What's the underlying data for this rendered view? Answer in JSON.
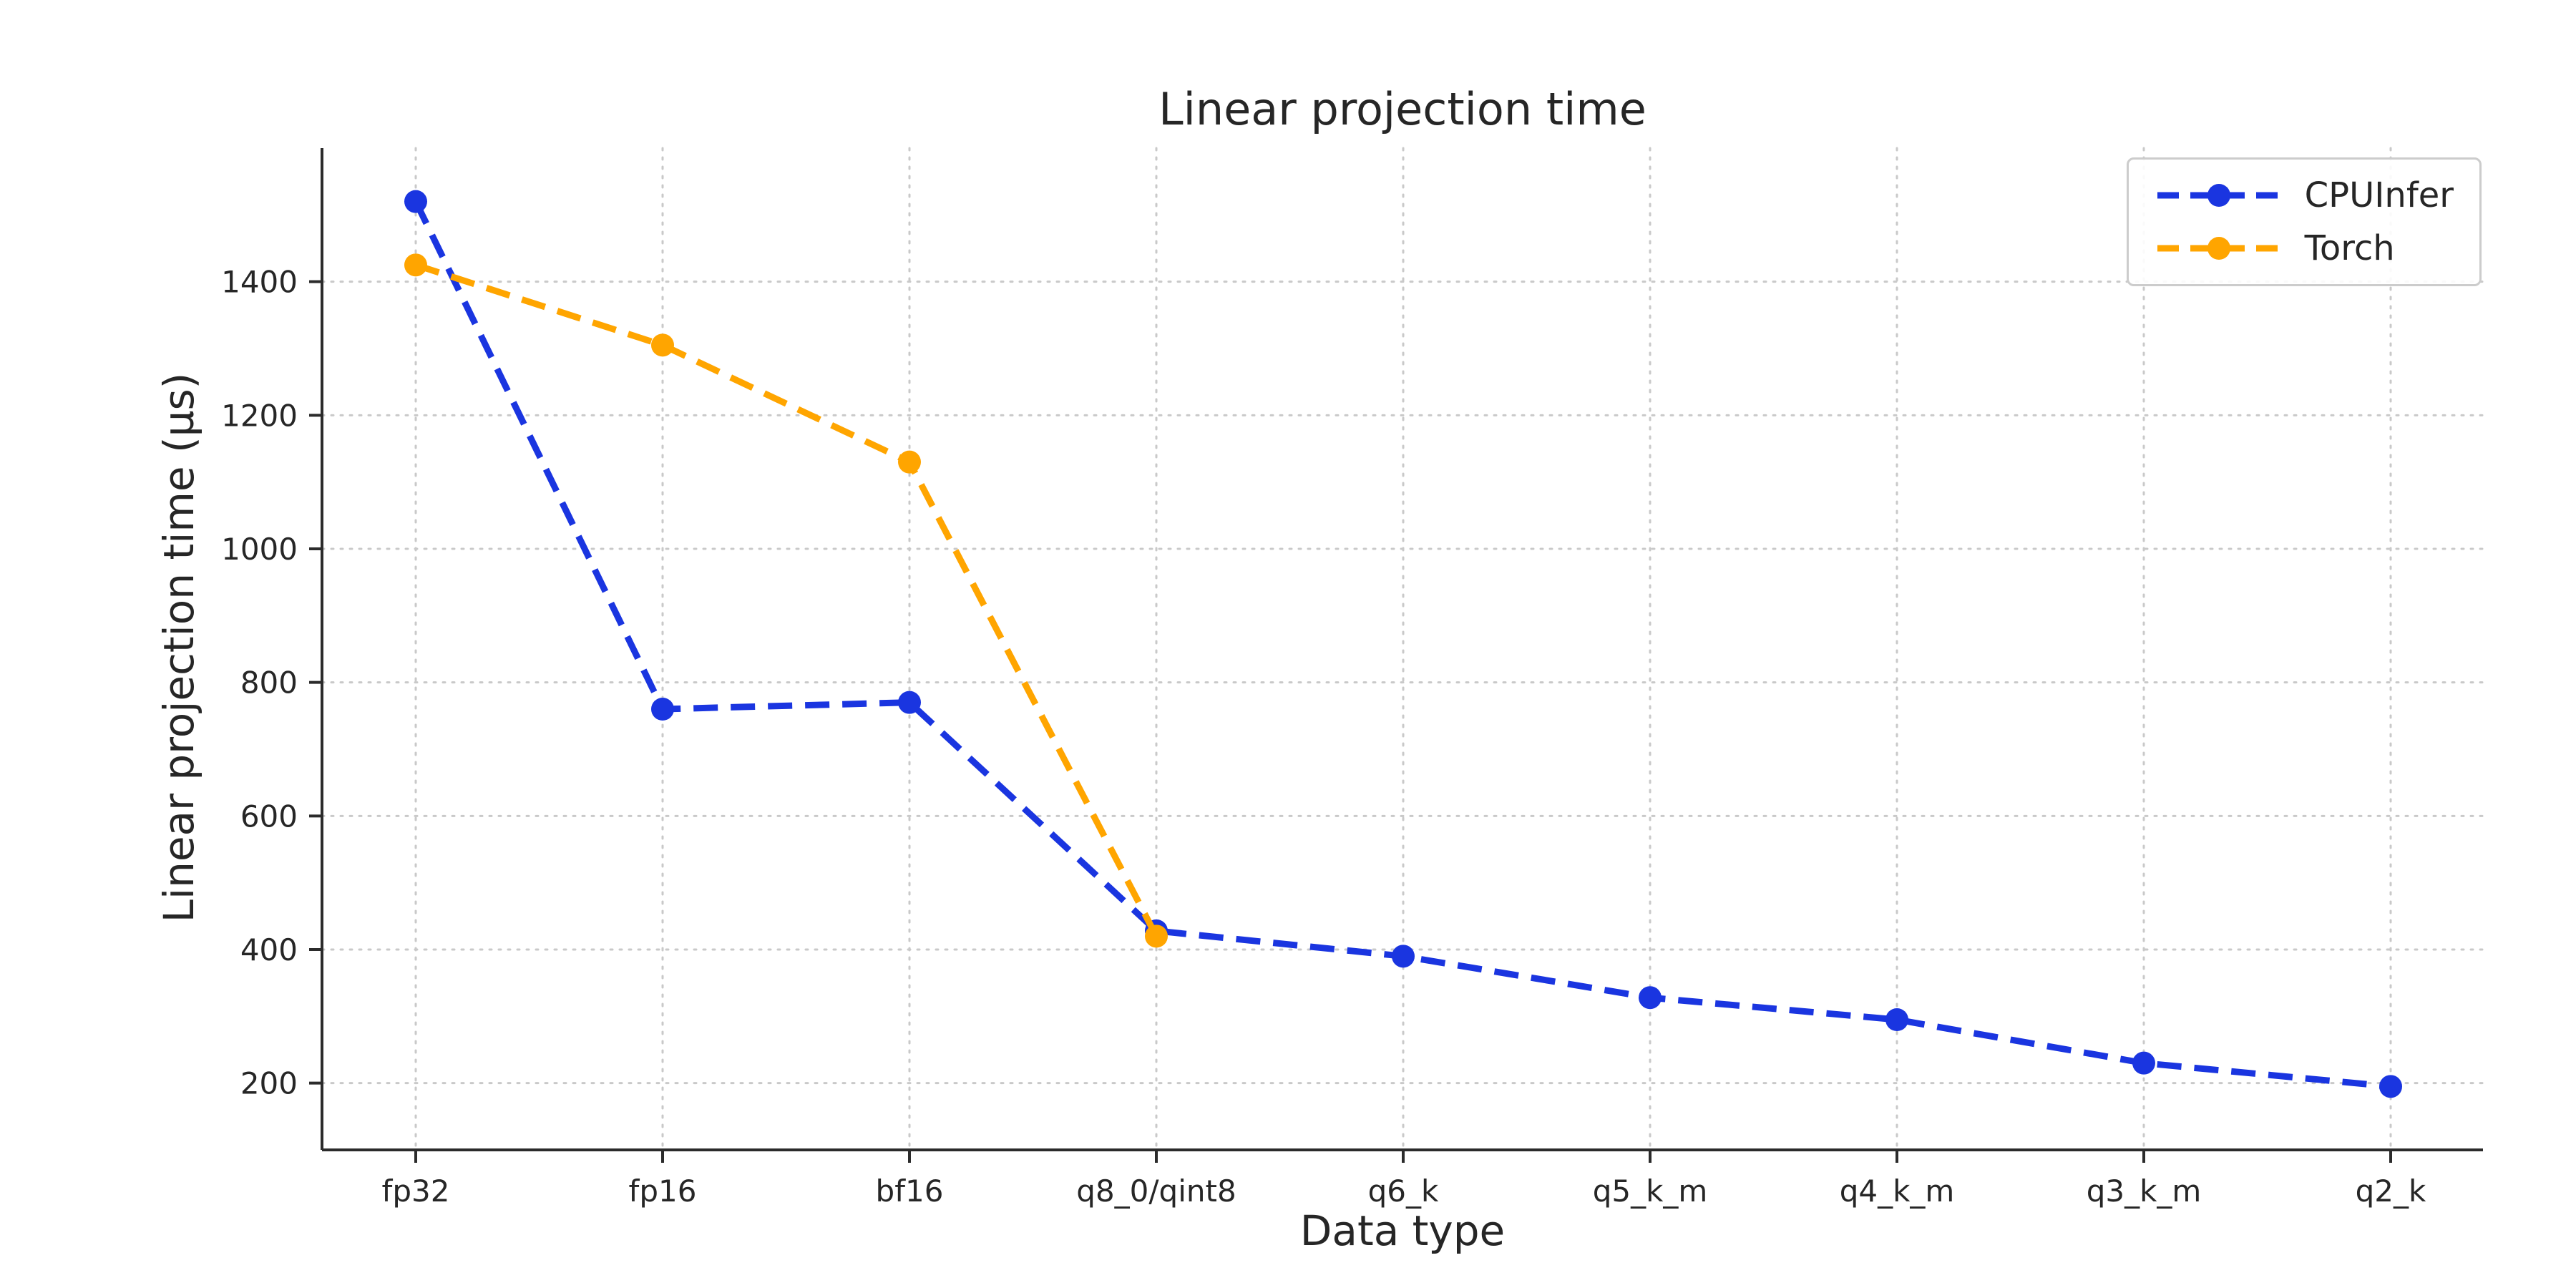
{
  "chart_data": {
    "type": "line",
    "title": "Linear projection time",
    "xlabel": "Data type",
    "ylabel": "Linear projection time (µs)",
    "categories": [
      "fp32",
      "fp16",
      "bf16",
      "q8_0/qint8",
      "q6_k",
      "q5_k_m",
      "q4_k_m",
      "q3_k_m",
      "q2_k"
    ],
    "series": [
      {
        "name": "CPUInfer",
        "color": "#1a35e0",
        "values": [
          1520,
          760,
          770,
          428,
          390,
          328,
          295,
          230,
          195
        ]
      },
      {
        "name": "Torch",
        "color": "#ffa500",
        "values": [
          1425,
          1305,
          1130,
          420,
          null,
          null,
          null,
          null,
          null
        ]
      }
    ],
    "ylim": [
      100,
      1600
    ],
    "yticks": [
      200,
      400,
      600,
      800,
      1000,
      1200,
      1400
    ],
    "grid": "dotted",
    "line_style": "dashed",
    "marker": "circle",
    "legend_position": "upper right"
  }
}
